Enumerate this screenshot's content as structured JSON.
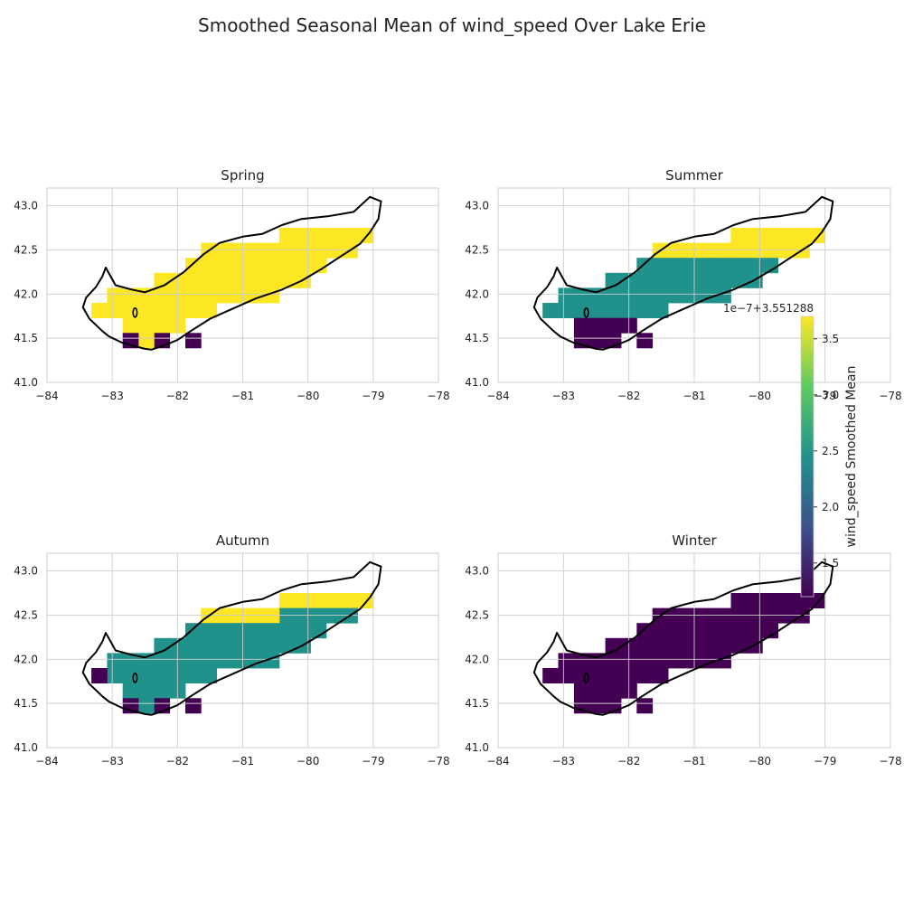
{
  "chart_data": {
    "type": "heatmap",
    "title": "Smoothed Seasonal Mean of wind_speed Over Lake Erie",
    "xlim": [
      -84,
      -78
    ],
    "ylim": [
      41.0,
      43.2
    ],
    "x_ticks": [
      -84,
      -83,
      -82,
      -81,
      -80,
      -79,
      -78
    ],
    "y_ticks": [
      41.0,
      41.5,
      42.0,
      42.5,
      43.0
    ],
    "x_tick_labels": [
      "−84",
      "−83",
      "−82",
      "−81",
      "−80",
      "−79",
      "−78"
    ],
    "y_tick_labels": [
      "41.0",
      "41.5",
      "42.0",
      "42.5",
      "43.0"
    ],
    "grid": true,
    "colormap": "viridis",
    "cell_lon": 0.24,
    "cell_lat": 0.17,
    "colorbar": {
      "label": "wind_speed Smoothed Mean",
      "offset_text": "1e−7+3.551288",
      "range": [
        1.2,
        3.7
      ],
      "ticks": [
        1.5,
        2.0,
        2.5,
        3.0,
        3.5
      ],
      "tick_labels": [
        "1.5",
        "2.0",
        "2.5",
        "3.0",
        "3.5"
      ]
    },
    "cells": [
      {
        "lon": -79.12,
        "lat": 42.665
      },
      {
        "lon": -79.36,
        "lat": 42.665
      },
      {
        "lon": -79.6,
        "lat": 42.665
      },
      {
        "lon": -79.84,
        "lat": 42.665
      },
      {
        "lon": -80.08,
        "lat": 42.665
      },
      {
        "lon": -80.32,
        "lat": 42.665
      },
      {
        "lon": -79.36,
        "lat": 42.495
      },
      {
        "lon": -79.6,
        "lat": 42.495
      },
      {
        "lon": -79.84,
        "lat": 42.495
      },
      {
        "lon": -80.08,
        "lat": 42.495
      },
      {
        "lon": -80.32,
        "lat": 42.495
      },
      {
        "lon": -80.56,
        "lat": 42.495
      },
      {
        "lon": -80.8,
        "lat": 42.495
      },
      {
        "lon": -81.04,
        "lat": 42.495
      },
      {
        "lon": -81.28,
        "lat": 42.495
      },
      {
        "lon": -81.52,
        "lat": 42.495
      },
      {
        "lon": -79.84,
        "lat": 42.325
      },
      {
        "lon": -80.08,
        "lat": 42.325
      },
      {
        "lon": -80.32,
        "lat": 42.325
      },
      {
        "lon": -80.56,
        "lat": 42.325
      },
      {
        "lon": -80.8,
        "lat": 42.325
      },
      {
        "lon": -81.04,
        "lat": 42.325
      },
      {
        "lon": -81.28,
        "lat": 42.325
      },
      {
        "lon": -81.52,
        "lat": 42.325
      },
      {
        "lon": -81.76,
        "lat": 42.325
      },
      {
        "lon": -80.08,
        "lat": 42.155
      },
      {
        "lon": -80.32,
        "lat": 42.155
      },
      {
        "lon": -80.56,
        "lat": 42.155
      },
      {
        "lon": -80.8,
        "lat": 42.155
      },
      {
        "lon": -81.04,
        "lat": 42.155
      },
      {
        "lon": -81.28,
        "lat": 42.155
      },
      {
        "lon": -81.52,
        "lat": 42.155
      },
      {
        "lon": -81.76,
        "lat": 42.155
      },
      {
        "lon": -82.0,
        "lat": 42.155
      },
      {
        "lon": -82.24,
        "lat": 42.155
      },
      {
        "lon": -80.56,
        "lat": 41.985
      },
      {
        "lon": -80.8,
        "lat": 41.985
      },
      {
        "lon": -81.04,
        "lat": 41.985
      },
      {
        "lon": -81.28,
        "lat": 41.985
      },
      {
        "lon": -81.52,
        "lat": 41.985
      },
      {
        "lon": -81.76,
        "lat": 41.985
      },
      {
        "lon": -82.0,
        "lat": 41.985
      },
      {
        "lon": -82.24,
        "lat": 41.985
      },
      {
        "lon": -82.48,
        "lat": 41.985
      },
      {
        "lon": -82.72,
        "lat": 41.985
      },
      {
        "lon": -82.96,
        "lat": 41.985
      },
      {
        "lon": -81.52,
        "lat": 41.815
      },
      {
        "lon": -81.76,
        "lat": 41.815
      },
      {
        "lon": -82.0,
        "lat": 41.815
      },
      {
        "lon": -82.24,
        "lat": 41.815
      },
      {
        "lon": -82.48,
        "lat": 41.815
      },
      {
        "lon": -82.72,
        "lat": 41.815
      },
      {
        "lon": -82.96,
        "lat": 41.815
      },
      {
        "lon": -83.2,
        "lat": 41.815
      },
      {
        "lon": -82.0,
        "lat": 41.645
      },
      {
        "lon": -82.24,
        "lat": 41.645
      },
      {
        "lon": -82.48,
        "lat": 41.645
      },
      {
        "lon": -82.72,
        "lat": 41.645
      },
      {
        "lon": -81.76,
        "lat": 41.475
      },
      {
        "lon": -82.24,
        "lat": 41.475
      },
      {
        "lon": -82.48,
        "lat": 41.475
      },
      {
        "lon": -82.72,
        "lat": 41.475
      }
    ],
    "panels": [
      {
        "name": "Spring",
        "values": [
          3.7,
          3.7,
          3.7,
          3.7,
          3.7,
          3.7,
          3.7,
          3.7,
          3.7,
          3.7,
          3.7,
          3.7,
          3.7,
          3.7,
          3.7,
          3.7,
          3.7,
          3.7,
          3.7,
          3.7,
          3.7,
          3.7,
          3.7,
          3.7,
          3.7,
          3.7,
          3.7,
          3.7,
          3.7,
          3.7,
          3.7,
          3.7,
          3.7,
          3.7,
          3.7,
          3.7,
          3.7,
          3.7,
          3.7,
          3.7,
          3.7,
          3.7,
          3.7,
          3.7,
          3.7,
          3.7,
          3.7,
          3.7,
          3.7,
          3.7,
          3.7,
          3.7,
          3.7,
          3.7,
          3.7,
          3.7,
          3.7,
          3.7,
          1.2,
          1.2,
          3.7,
          1.2
        ]
      },
      {
        "name": "Summer",
        "values": [
          3.7,
          3.7,
          3.7,
          3.7,
          3.7,
          3.7,
          3.7,
          3.7,
          3.7,
          3.7,
          3.7,
          3.7,
          3.7,
          3.7,
          3.7,
          3.7,
          2.45,
          2.45,
          2.45,
          2.45,
          2.45,
          2.45,
          2.45,
          2.45,
          2.45,
          2.45,
          2.45,
          2.45,
          2.45,
          2.45,
          2.45,
          2.45,
          2.45,
          2.45,
          2.45,
          2.45,
          2.45,
          2.45,
          2.45,
          2.45,
          2.45,
          2.45,
          2.45,
          2.45,
          2.45,
          2.45,
          2.45,
          2.45,
          2.45,
          2.45,
          2.45,
          2.45,
          2.45,
          2.45,
          1.2,
          1.2,
          1.2,
          1.2,
          1.2,
          1.2,
          1.2,
          1.2
        ]
      },
      {
        "name": "Autumn",
        "values": [
          3.7,
          3.7,
          3.7,
          3.7,
          3.7,
          3.7,
          2.45,
          2.45,
          2.45,
          2.45,
          2.45,
          3.7,
          3.7,
          3.7,
          3.7,
          3.7,
          2.45,
          2.45,
          2.45,
          2.45,
          2.45,
          2.45,
          2.45,
          2.45,
          2.45,
          2.45,
          2.45,
          2.45,
          2.45,
          2.45,
          2.45,
          2.45,
          2.45,
          2.45,
          2.45,
          2.45,
          2.45,
          2.45,
          2.45,
          2.45,
          2.45,
          2.45,
          2.45,
          2.45,
          2.45,
          2.45,
          2.45,
          2.45,
          2.45,
          2.45,
          2.45,
          2.45,
          2.45,
          1.2,
          2.45,
          2.45,
          2.45,
          2.45,
          1.2,
          1.2,
          2.45,
          1.2
        ]
      },
      {
        "name": "Winter",
        "values": [
          1.2,
          1.2,
          1.2,
          1.2,
          1.2,
          1.2,
          1.2,
          1.2,
          1.2,
          1.2,
          1.2,
          1.2,
          1.2,
          1.2,
          1.2,
          1.2,
          1.2,
          1.2,
          1.2,
          1.2,
          1.2,
          1.2,
          1.2,
          1.2,
          1.2,
          1.2,
          1.2,
          1.2,
          1.2,
          1.2,
          1.2,
          1.2,
          1.2,
          1.2,
          1.2,
          1.2,
          1.2,
          1.2,
          1.2,
          1.2,
          1.2,
          1.2,
          1.2,
          1.2,
          1.2,
          1.2,
          1.2,
          1.2,
          1.2,
          1.2,
          1.2,
          1.2,
          1.2,
          1.2,
          1.2,
          1.2,
          1.2,
          1.2,
          1.2,
          1.2,
          1.2,
          1.2
        ]
      }
    ],
    "coastline": [
      [
        -82.5,
        41.38
      ],
      [
        -82.7,
        41.42
      ],
      [
        -82.85,
        41.45
      ],
      [
        -83.05,
        41.52
      ],
      [
        -83.15,
        41.58
      ],
      [
        -83.35,
        41.72
      ],
      [
        -83.45,
        41.85
      ],
      [
        -83.4,
        41.96
      ],
      [
        -83.25,
        42.08
      ],
      [
        -83.15,
        42.2
      ],
      [
        -83.1,
        42.3
      ],
      [
        -82.95,
        42.1
      ],
      [
        -82.7,
        42.05
      ],
      [
        -82.5,
        42.02
      ],
      [
        -82.2,
        42.1
      ],
      [
        -81.9,
        42.25
      ],
      [
        -81.6,
        42.45
      ],
      [
        -81.35,
        42.58
      ],
      [
        -81.0,
        42.65
      ],
      [
        -80.7,
        42.68
      ],
      [
        -80.4,
        42.78
      ],
      [
        -80.1,
        42.85
      ],
      [
        -79.7,
        42.88
      ],
      [
        -79.3,
        42.93
      ],
      [
        -79.05,
        43.1
      ],
      [
        -78.88,
        43.05
      ],
      [
        -78.92,
        42.85
      ],
      [
        -79.05,
        42.7
      ],
      [
        -79.2,
        42.57
      ],
      [
        -79.45,
        42.45
      ],
      [
        -79.8,
        42.28
      ],
      [
        -80.1,
        42.15
      ],
      [
        -80.4,
        42.05
      ],
      [
        -80.8,
        41.95
      ],
      [
        -81.2,
        41.82
      ],
      [
        -81.5,
        41.72
      ],
      [
        -81.8,
        41.58
      ],
      [
        -82.0,
        41.48
      ],
      [
        -82.2,
        41.42
      ],
      [
        -82.4,
        41.37
      ],
      [
        -82.5,
        41.38
      ]
    ]
  }
}
